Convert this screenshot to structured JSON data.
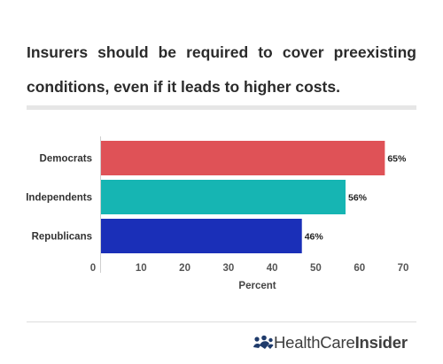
{
  "title": "Insurers should be required to cover preexisting conditions, even if it leads to higher costs.",
  "brand": {
    "name_part1": "HealthCare",
    "name_part2": "Insider",
    "icon": "people-icon",
    "icon_color": "#1f3b6b"
  },
  "chart_data": {
    "type": "bar",
    "orientation": "horizontal",
    "categories": [
      "Democrats",
      "Independents",
      "Republicans"
    ],
    "values": [
      65,
      56,
      46
    ],
    "value_labels": [
      "65%",
      "56%",
      "46%"
    ],
    "colors": [
      "#df5257",
      "#16b5b3",
      "#1a2fb8"
    ],
    "xlabel": "Percent",
    "ylabel": "",
    "xlim": [
      0,
      70
    ],
    "xticks": [
      0,
      10,
      20,
      30,
      40,
      50,
      60,
      70
    ],
    "grid": false
  }
}
